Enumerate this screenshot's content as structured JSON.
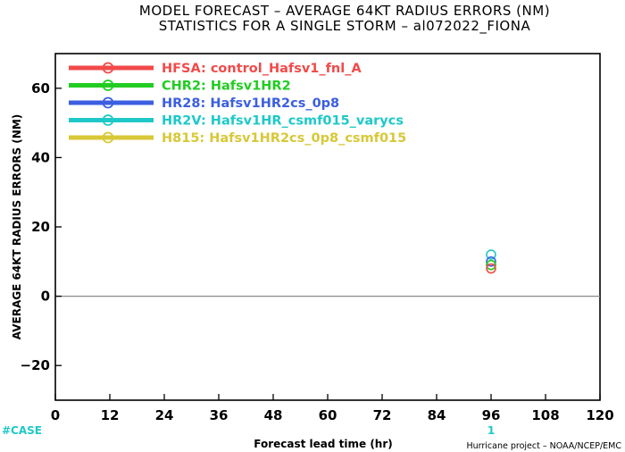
{
  "titles": {
    "line1": "MODEL FORECAST – AVERAGE 64KT RADIUS ERRORS (NM)",
    "line2": "STATISTICS FOR A SINGLE STORM – al072022_FIONA"
  },
  "case_label": "#CASE",
  "credit": "Hurricane project – NOAA/NCEP/EMC",
  "colors": {
    "case": "#1fc8c8",
    "zero_line": "#8a8a8a"
  },
  "chart_data": {
    "type": "scatter",
    "xlabel": "Forecast lead time (hr)",
    "ylabel": "AVERAGE 64KT RADIUS ERRORS (NM)",
    "xlim": [
      0,
      120
    ],
    "ylim": [
      -30,
      70
    ],
    "xticks": [
      0,
      12,
      24,
      36,
      48,
      60,
      72,
      84,
      96,
      108,
      120
    ],
    "xtick_labels": [
      "0",
      "12",
      "24",
      "36",
      "48",
      "60",
      "72",
      "84",
      "96",
      "108",
      "120"
    ],
    "yticks": [
      -20,
      0,
      20,
      40,
      60
    ],
    "ytick_labels": [
      "−20",
      "0",
      "20",
      "40",
      "60"
    ],
    "grid": false,
    "legend_position": "top-left",
    "series": [
      {
        "name": "HFSA",
        "desc": "control_Hafsv1_fnl_A",
        "color": "#f24a4a",
        "x": [
          96
        ],
        "y": [
          8
        ]
      },
      {
        "name": "CHR2",
        "desc": "Hafsv1HR2",
        "color": "#22cc22",
        "x": [
          96
        ],
        "y": [
          9
        ]
      },
      {
        "name": "HR28",
        "desc": "Hafsv1HR2cs_0p8",
        "color": "#3b5fe0",
        "x": [
          96
        ],
        "y": [
          10
        ]
      },
      {
        "name": "HR2V",
        "desc": "Hafsv1HR_csmf015_varycs",
        "color": "#1fc8c8",
        "x": [
          96
        ],
        "y": [
          12
        ]
      },
      {
        "name": "H815",
        "desc": "Hafsv1HR2cs_0p8_csmf015",
        "color": "#d8c838",
        "x": [
          96
        ],
        "y": [
          9
        ]
      }
    ],
    "case_counts": {
      "x": [
        96
      ],
      "labels": [
        "1"
      ]
    }
  }
}
